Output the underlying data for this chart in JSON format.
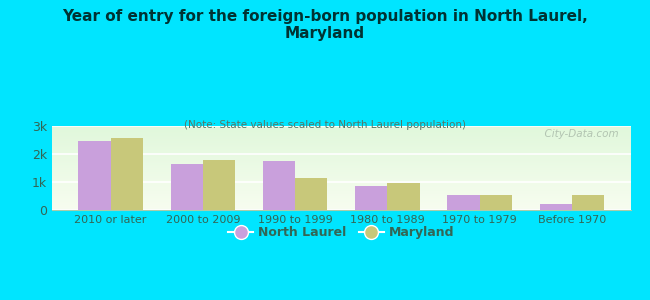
{
  "title": "Year of entry for the foreign-born population in North Laurel,\nMaryland",
  "subtitle": "(Note: State values scaled to North Laurel population)",
  "categories": [
    "2010 or later",
    "2000 to 2009",
    "1990 to 1999",
    "1980 to 1989",
    "1970 to 1979",
    "Before 1970"
  ],
  "north_laurel": [
    2450,
    1650,
    1750,
    870,
    530,
    220
  ],
  "maryland": [
    2570,
    1780,
    1160,
    960,
    540,
    520
  ],
  "north_laurel_color": "#c9a0dc",
  "maryland_color": "#c8c87a",
  "bg_color": "#00e5ff",
  "ylim": [
    0,
    3000
  ],
  "yticks": [
    0,
    1000,
    2000,
    3000
  ],
  "ytick_labels": [
    "0",
    "1k",
    "2k",
    "3k"
  ],
  "bar_width": 0.35,
  "watermark": "  City-Data.com"
}
